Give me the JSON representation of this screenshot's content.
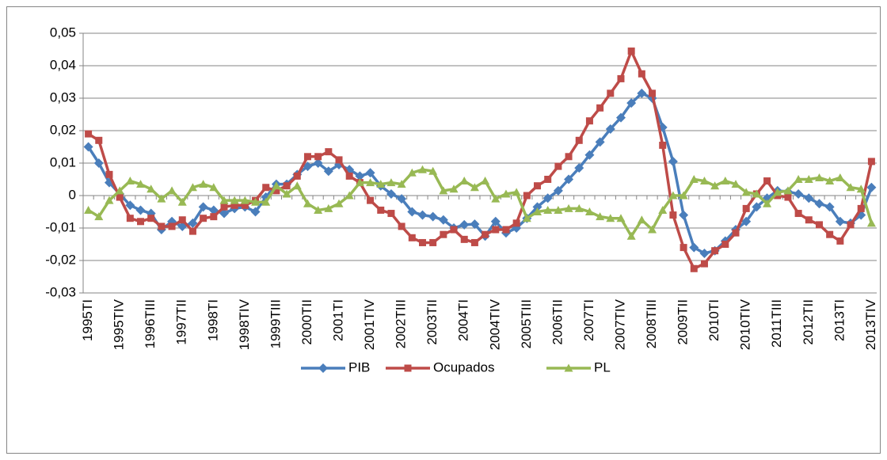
{
  "chart_data": {
    "type": "line",
    "categories": [
      "1995TI",
      null,
      null,
      "1995TIV",
      null,
      null,
      "1996TIII",
      null,
      null,
      "1997TII",
      null,
      null,
      "1998TI",
      null,
      null,
      "1998TIV",
      null,
      null,
      "1999TIII",
      null,
      null,
      "2000TII",
      null,
      null,
      "2001TI",
      null,
      null,
      "2001TIV",
      null,
      null,
      "2002TIII",
      null,
      null,
      "2003TII",
      null,
      null,
      "2004TI",
      null,
      null,
      "2004TIV",
      null,
      null,
      "2005TIII",
      null,
      null,
      "2006TII",
      null,
      null,
      "2007TI",
      null,
      null,
      "2007TIV",
      null,
      null,
      "2008TIII",
      null,
      null,
      "2009TII",
      null,
      null,
      "2010TI",
      null,
      null,
      "2010TIV",
      null,
      null,
      "2011TIII",
      null,
      null,
      "2012TII",
      null,
      null,
      "2013TI",
      null,
      null,
      "2013TIV"
    ],
    "series": [
      {
        "name": "PIB",
        "color": "#4a7ebb",
        "marker": "diamond",
        "values": [
          0.015,
          0.01,
          0.004,
          0.0005,
          -0.003,
          -0.0045,
          -0.0055,
          -0.0105,
          -0.008,
          -0.0095,
          -0.0085,
          -0.0035,
          -0.0045,
          -0.0055,
          -0.004,
          -0.0035,
          -0.005,
          -0.0005,
          0.0035,
          0.0035,
          0.0065,
          0.009,
          0.01,
          0.0075,
          0.0095,
          0.008,
          0.006,
          0.007,
          0.003,
          0.0005,
          -0.001,
          -0.005,
          -0.006,
          -0.0065,
          -0.0075,
          -0.01,
          -0.009,
          -0.0088,
          -0.0125,
          -0.008,
          -0.0115,
          -0.01,
          -0.007,
          -0.0035,
          -0.0008,
          0.0015,
          0.005,
          0.0085,
          0.0125,
          0.0165,
          0.0205,
          0.024,
          0.0285,
          0.0315,
          0.03,
          0.021,
          0.0105,
          -0.006,
          -0.016,
          -0.0178,
          -0.017,
          -0.014,
          -0.0105,
          -0.008,
          -0.0035,
          -0.0008,
          0.0015,
          0.0012,
          0.0005,
          -0.0008,
          -0.0025,
          -0.0035,
          -0.008,
          -0.0085,
          -0.006,
          0.0025
        ]
      },
      {
        "name": "Ocupados",
        "color": "#be4b48",
        "marker": "square",
        "values": [
          0.019,
          0.017,
          0.0065,
          -0.0005,
          -0.007,
          -0.008,
          -0.007,
          -0.0095,
          -0.0095,
          -0.0075,
          -0.011,
          -0.007,
          -0.0065,
          -0.0035,
          -0.003,
          -0.003,
          -0.0015,
          0.0025,
          0.0015,
          0.003,
          0.006,
          0.012,
          0.012,
          0.0135,
          0.011,
          0.006,
          0.004,
          -0.0015,
          -0.0045,
          -0.0055,
          -0.0095,
          -0.013,
          -0.0145,
          -0.0145,
          -0.012,
          -0.0105,
          -0.0135,
          -0.0145,
          -0.012,
          -0.0105,
          -0.0105,
          -0.0085,
          0.0,
          0.003,
          0.005,
          0.009,
          0.012,
          0.017,
          0.023,
          0.027,
          0.0315,
          0.036,
          0.0445,
          0.0375,
          0.0315,
          0.0155,
          -0.006,
          -0.016,
          -0.0225,
          -0.021,
          -0.017,
          -0.015,
          -0.0115,
          -0.004,
          0.0005,
          0.0045,
          0.0,
          -0.0005,
          -0.0055,
          -0.0075,
          -0.009,
          -0.012,
          -0.014,
          -0.009,
          -0.004,
          0.0105
        ]
      },
      {
        "name": "PL",
        "color": "#98b954",
        "marker": "triangle",
        "values": [
          -0.0045,
          -0.0065,
          -0.0015,
          0.0015,
          0.0045,
          0.0035,
          0.002,
          -0.001,
          0.0015,
          -0.002,
          0.0025,
          0.0035,
          0.0025,
          -0.0015,
          -0.0015,
          -0.0015,
          -0.002,
          -0.002,
          0.003,
          0.0005,
          0.003,
          -0.0025,
          -0.0045,
          -0.004,
          -0.0025,
          0.0,
          0.004,
          0.004,
          0.0035,
          0.004,
          0.0035,
          0.007,
          0.008,
          0.0075,
          0.0015,
          0.002,
          0.0045,
          0.0025,
          0.0045,
          -0.001,
          0.0005,
          0.001,
          -0.007,
          -0.005,
          -0.0045,
          -0.0045,
          -0.004,
          -0.004,
          -0.005,
          -0.0065,
          -0.007,
          -0.007,
          -0.0125,
          -0.0075,
          -0.0105,
          -0.0045,
          0.0,
          0.0,
          0.005,
          0.0045,
          0.003,
          0.0045,
          0.0035,
          0.001,
          0.0005,
          -0.0025,
          0.001,
          0.0015,
          0.005,
          0.005,
          0.0055,
          0.0045,
          0.0055,
          0.0025,
          0.002,
          -0.0085
        ]
      }
    ],
    "ylim": [
      -0.03,
      0.05
    ],
    "yticks": [
      {
        "value": -0.03,
        "label": "-0,03"
      },
      {
        "value": -0.02,
        "label": "-0,02"
      },
      {
        "value": -0.01,
        "label": "-0,01"
      },
      0,
      {
        "value": 0.01,
        "label": "0,01"
      },
      {
        "value": 0.02,
        "label": "0,02"
      },
      {
        "value": 0.03,
        "label": "0,03"
      },
      {
        "value": 0.04,
        "label": "0,04"
      },
      {
        "value": 0.05,
        "label": "0,05"
      }
    ],
    "grid": true,
    "legend": "bottom"
  }
}
